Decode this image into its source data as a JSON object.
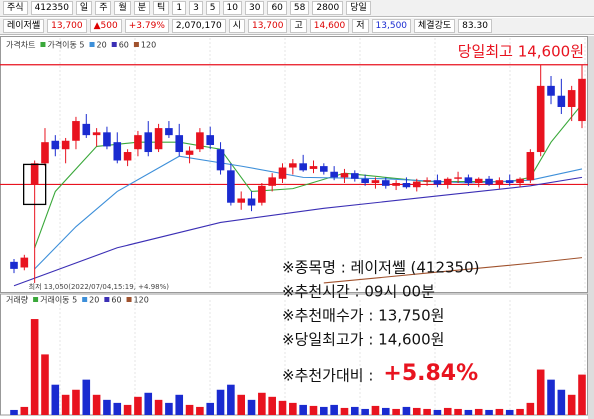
{
  "toolbar": {
    "row1": [
      "주식",
      "412350",
      "일",
      "주",
      "월",
      "분",
      "틱",
      "1",
      "3",
      "5",
      "10",
      "30",
      "60",
      "58",
      "2800",
      "당일"
    ],
    "row2": [
      "레이저쎌",
      "13,700",
      "▲500",
      "+3.79%",
      "2,070,170",
      "시",
      "13,700",
      "고",
      "14,600",
      "저",
      "13,500",
      "체결강도",
      "83.30"
    ]
  },
  "chart_data": {
    "type": "candlestick",
    "price_label": "가격차트",
    "volume_label": "거래량",
    "ylim": [
      13000,
      14790
    ],
    "vlim": [
      0,
      100
    ],
    "up_color": "#e8131f",
    "down_color": "#1a2bd0",
    "hlines": [
      14600,
      13750
    ],
    "hline_color": "#e8131f",
    "highlight_index": 2,
    "high_label": "당일최고 14,600원",
    "low_label": "최저 13,050(2022/07/04,15:19, +4.98%)",
    "open": [
      13200,
      13160,
      13750,
      13900,
      14060,
      14000,
      14060,
      14180,
      14100,
      14120,
      14050,
      13920,
      14000,
      14120,
      14000,
      14150,
      14100,
      13960,
      14000,
      14100,
      14000,
      13850,
      13620,
      13650,
      13620,
      13740,
      13790,
      13870,
      13900,
      13860,
      13880,
      13840,
      13800,
      13830,
      13790,
      13760,
      13780,
      13740,
      13760,
      13730,
      13770,
      13780,
      13750,
      13790,
      13800,
      13760,
      13790,
      13750,
      13780,
      13760,
      13780,
      13980,
      14450,
      14380,
      14300,
      14200
    ],
    "high": [
      13220,
      13250,
      13920,
      14150,
      14100,
      14080,
      14230,
      14250,
      14150,
      14160,
      14120,
      14000,
      14130,
      14200,
      14180,
      14200,
      14180,
      14020,
      14150,
      14160,
      14050,
      13900,
      13700,
      13700,
      13760,
      13830,
      13900,
      13930,
      13960,
      13920,
      13900,
      13880,
      13860,
      13850,
      13820,
      13800,
      13800,
      13780,
      13800,
      13790,
      13800,
      13820,
      13800,
      13840,
      13820,
      13800,
      13810,
      13800,
      13820,
      13800,
      14000,
      14600,
      14520,
      14500,
      14450,
      14600
    ],
    "low": [
      13120,
      13140,
      13050,
      13880,
      13950,
      13900,
      14000,
      14080,
      14020,
      14000,
      13900,
      13880,
      13950,
      13950,
      13980,
      14080,
      13950,
      13900,
      13980,
      14000,
      13820,
      13600,
      13570,
      13560,
      13600,
      13700,
      13760,
      13820,
      13840,
      13830,
      13820,
      13780,
      13760,
      13770,
      13740,
      13720,
      13720,
      13710,
      13720,
      13700,
      13740,
      13730,
      13720,
      13760,
      13740,
      13730,
      13740,
      13720,
      13740,
      13730,
      13760,
      13950,
      14320,
      14250,
      14200,
      14150
    ],
    "close": [
      13150,
      13230,
      13900,
      14050,
      14000,
      14060,
      14200,
      14100,
      14120,
      14020,
      13920,
      13980,
      14100,
      13980,
      14150,
      14100,
      13980,
      13990,
      14120,
      14030,
      13850,
      13620,
      13650,
      13600,
      13740,
      13800,
      13870,
      13900,
      13850,
      13880,
      13840,
      13800,
      13830,
      13790,
      13760,
      13780,
      13740,
      13760,
      13730,
      13770,
      13780,
      13750,
      13790,
      13800,
      13760,
      13790,
      13750,
      13780,
      13760,
      13790,
      13980,
      14450,
      14380,
      14300,
      14420,
      14500
    ],
    "volume": [
      5,
      8,
      95,
      60,
      30,
      20,
      25,
      35,
      20,
      15,
      12,
      10,
      18,
      22,
      15,
      12,
      20,
      10,
      8,
      12,
      25,
      30,
      20,
      15,
      22,
      18,
      14,
      12,
      10,
      9,
      8,
      10,
      7,
      8,
      6,
      9,
      7,
      6,
      8,
      7,
      6,
      5,
      7,
      6,
      5,
      6,
      5,
      6,
      5,
      6,
      12,
      45,
      35,
      25,
      20,
      40
    ],
    "ma": [
      {
        "name": "가격이동 5",
        "color": "#3aa83a",
        "x": [
          2,
          4,
          8,
          12,
          16,
          20,
          23,
          27,
          32,
          40,
          48,
          50,
          52,
          55
        ],
        "values": [
          13300,
          13700,
          14020,
          14050,
          14050,
          14000,
          13700,
          13720,
          13830,
          13770,
          13770,
          13800,
          14050,
          14320
        ]
      },
      {
        "name": "20",
        "color": "#3d8fd9",
        "x": [
          2,
          6,
          10,
          16,
          22,
          28,
          36,
          44,
          50,
          55
        ],
        "values": [
          13150,
          13450,
          13700,
          13950,
          13880,
          13800,
          13790,
          13760,
          13780,
          13860
        ]
      },
      {
        "name": "60",
        "color": "#3b2fb5",
        "x": [
          0,
          10,
          20,
          30,
          40,
          50,
          55
        ],
        "values": [
          13030,
          13300,
          13480,
          13580,
          13660,
          13740,
          13800
        ]
      },
      {
        "name": "120",
        "color": "#a0522d",
        "x": [
          30,
          40,
          50,
          55
        ],
        "values": [
          13050,
          13120,
          13190,
          13230
        ]
      }
    ],
    "volume_ma_names": [
      "거래이동 5",
      "20",
      "60",
      "120"
    ]
  },
  "overlay": {
    "lines": [
      "※종목명 : 레이저쎌 (412350)",
      "※추천시간 : 09시 00분",
      "※추천매수가 : 13,750원",
      "※당일최고가 : 14,600원"
    ],
    "last_label": "※추천가대비 :",
    "last_value": "+5.84%"
  }
}
